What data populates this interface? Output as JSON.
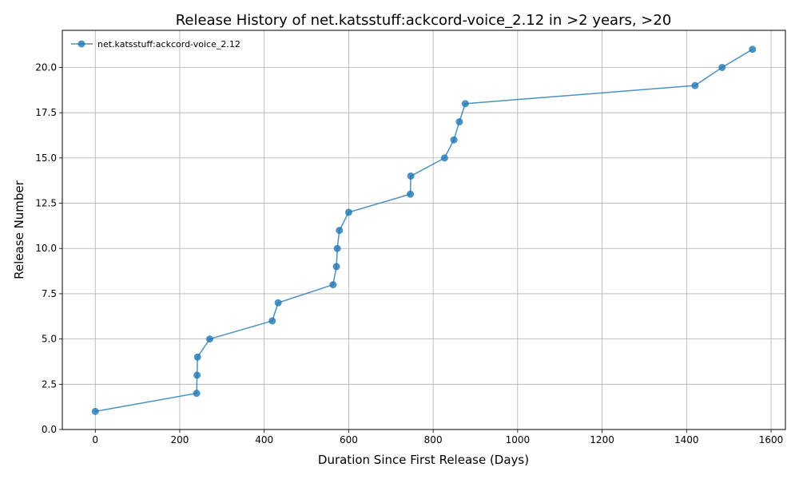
{
  "chart_data": {
    "type": "line",
    "title": "Release History of net.katsstuff:ackcord-voice_2.12 in >2 years, >20",
    "xlabel": "Duration Since First Release (Days)",
    "ylabel": "Release Number",
    "xlim": [
      -78,
      1634
    ],
    "ylim": [
      0,
      22.05
    ],
    "x_ticks": [
      0,
      200,
      400,
      600,
      800,
      1000,
      1200,
      1400,
      1600
    ],
    "x_tick_labels": [
      "0",
      "200",
      "400",
      "600",
      "800",
      "1000",
      "1200",
      "1400",
      "1600"
    ],
    "y_ticks": [
      0,
      2.5,
      5,
      7.5,
      10,
      12.5,
      15,
      17.5,
      20
    ],
    "y_tick_labels": [
      "0.0",
      "2.5",
      "5.0",
      "7.5",
      "10.0",
      "12.5",
      "15.0",
      "17.5",
      "20.0"
    ],
    "grid": true,
    "legend_position": "top-left",
    "series": [
      {
        "name": "net.katsstuff:ackcord-voice_2.12",
        "color": "#1f77b4",
        "marker": "circle",
        "x": [
          0,
          240,
          241,
          242,
          271,
          419,
          433,
          563,
          571,
          573,
          578,
          600,
          746,
          747,
          827,
          849,
          862,
          876,
          1420,
          1484,
          1556
        ],
        "y": [
          1,
          2,
          3,
          4,
          5,
          6,
          7,
          8,
          9,
          10,
          11,
          12,
          13,
          14,
          15,
          16,
          17,
          18,
          19,
          20,
          21
        ]
      }
    ]
  }
}
